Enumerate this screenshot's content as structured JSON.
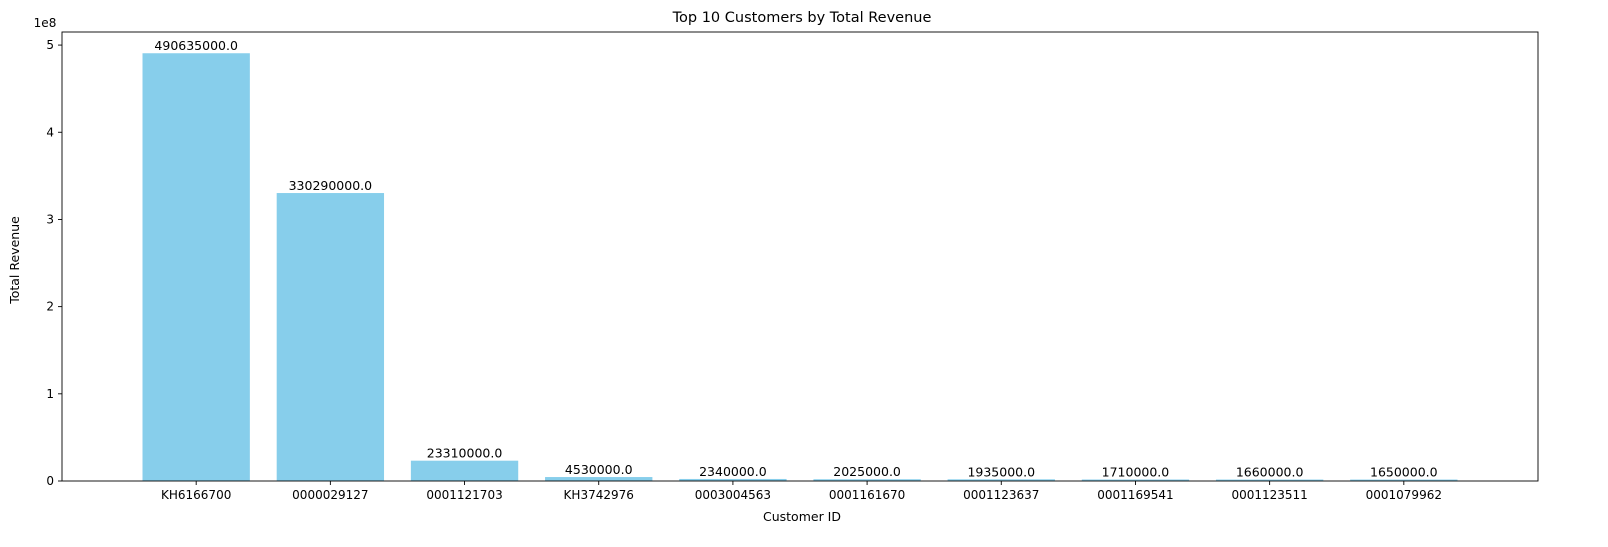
{
  "chart_data": {
    "type": "bar",
    "title": "Top 10 Customers by Total Revenue",
    "xlabel": "Customer ID",
    "ylabel": "Total Revenue",
    "offset_text": "1e8",
    "categories": [
      "KH6166700",
      "0000029127",
      "0001121703",
      "KH3742976",
      "0003004563",
      "0001161670",
      "0001123637",
      "0001169541",
      "0001123511",
      "0001079962"
    ],
    "values": [
      490635000,
      330290000,
      23310000,
      4530000,
      2340000,
      2025000,
      1935000,
      1710000,
      1660000,
      1650000
    ],
    "value_labels": [
      "490635000.0",
      "330290000.0",
      "23310000.0",
      "4530000.0",
      "2340000.0",
      "2025000.0",
      "1935000.0",
      "1710000.0",
      "1660000.0",
      "1650000.0"
    ],
    "ylim": [
      0,
      515000000
    ],
    "yticks": [
      0,
      100000000,
      200000000,
      300000000,
      400000000,
      500000000
    ],
    "ytick_labels": [
      "0",
      "1",
      "2",
      "3",
      "4",
      "5"
    ],
    "bar_color": "#87CEEB",
    "grid": false,
    "legend": "none"
  }
}
